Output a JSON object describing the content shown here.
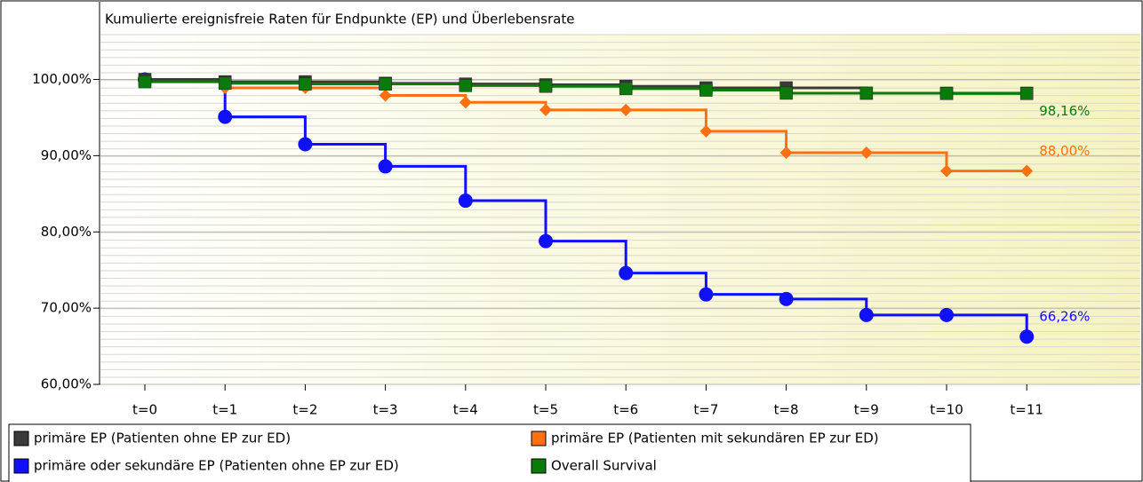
{
  "chart_data": {
    "type": "step",
    "title": "Kumulierte ereignisfreie Raten für Endpunkte (EP) und Überlebensrate",
    "categories": [
      "t=0",
      "t=1",
      "t=2",
      "t=3",
      "t=4",
      "t=5",
      "t=6",
      "t=7",
      "t=8",
      "t=9",
      "t=10",
      "t=11"
    ],
    "ylim": [
      60,
      106
    ],
    "yticks": [
      {
        "value": 60,
        "label": "60,00%"
      },
      {
        "value": 70,
        "label": "70,00%"
      },
      {
        "value": 80,
        "label": "80,00%"
      },
      {
        "value": 90,
        "label": "90,00%"
      },
      {
        "value": 100,
        "label": "100,00%"
      }
    ],
    "series": [
      {
        "name": "primäre EP (Patienten ohne EP zur ED)",
        "color": "#3a3a3a",
        "marker": "square",
        "values": [
          100,
          99.7,
          99.7,
          99.5,
          99.4,
          99.3,
          99.1,
          98.9,
          98.9,
          98.2,
          98.2,
          98.2
        ]
      },
      {
        "name": "primäre EP (Patienten mit sekundären EP zur ED)",
        "color": "#ff7010",
        "marker": "diamond",
        "values": [
          100,
          98.9,
          98.9,
          97.9,
          97.0,
          96.0,
          96.0,
          93.2,
          90.4,
          90.4,
          88.0,
          88.0
        ],
        "value_labels": [
          null,
          null,
          null,
          null,
          null,
          null,
          null,
          null,
          null,
          null,
          null,
          "88,00%"
        ]
      },
      {
        "name": "primäre oder sekundäre EP (Patienten ohne EP zur ED)",
        "color": "#1010ff",
        "marker": "circle",
        "values": [
          100,
          95.1,
          91.5,
          88.6,
          84.1,
          78.8,
          74.6,
          71.8,
          71.2,
          69.1,
          69.1,
          66.26
        ],
        "value_labels": [
          null,
          null,
          null,
          null,
          null,
          null,
          null,
          null,
          null,
          null,
          null,
          "66,26%"
        ]
      },
      {
        "name": "Overall Survival",
        "color": "#0a7a0a",
        "marker": "square",
        "values": [
          99.7,
          99.5,
          99.4,
          99.4,
          99.2,
          99.1,
          98.8,
          98.6,
          98.2,
          98.2,
          98.16,
          98.16
        ],
        "value_labels": [
          null,
          null,
          null,
          null,
          null,
          null,
          null,
          null,
          null,
          null,
          null,
          "98,16%"
        ]
      }
    ]
  }
}
